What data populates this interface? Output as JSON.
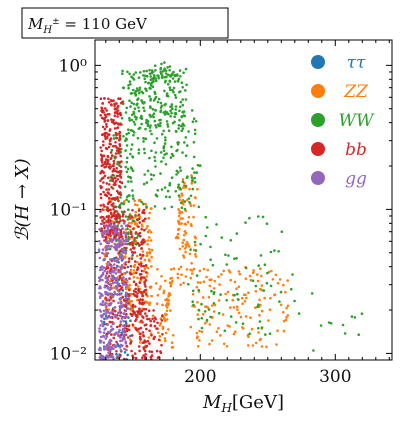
{
  "chart_data": {
    "type": "scatter",
    "title": "M_{H±} = 110 GeV",
    "title_parts": {
      "symbol": "M",
      "sub": "H",
      "sup": "±",
      "rest": " = 110 GeV"
    },
    "xlabel_main": "M",
    "xlabel_sub": "H",
    "xlabel_unit": "[GeV]",
    "ylabel": "ℬ(H → X)",
    "x_range": [
      122,
      342
    ],
    "y_range": [
      0.009,
      1.5
    ],
    "y_scale": "log",
    "x_ticks": [
      {
        "value": 200,
        "label": "200"
      },
      {
        "value": 300,
        "label": "300"
      }
    ],
    "y_ticks": [
      {
        "value": 0.01,
        "label": "10⁻²"
      },
      {
        "value": 0.1,
        "label": "10⁻¹"
      },
      {
        "value": 1,
        "label": "10⁰"
      }
    ],
    "legend_position": "top-right",
    "series": [
      {
        "name": "ττ",
        "color": "#1f77b4",
        "clusters": [
          {
            "x": [
              128,
              150
            ],
            "y": [
              0.009,
              0.05
            ],
            "n": 60
          }
        ]
      },
      {
        "name": "ZZ",
        "color": "#ff7f0e",
        "clusters": [
          {
            "x": [
              128,
              165
            ],
            "y": [
              0.02,
              0.12
            ],
            "n": 190
          },
          {
            "x": [
              143,
              180
            ],
            "y": [
              0.011,
              0.04
            ],
            "n": 90
          },
          {
            "x": [
              183,
              198
            ],
            "y": [
              0.03,
              0.18
            ],
            "n": 70
          },
          {
            "x": [
              192,
              265
            ],
            "y": [
              0.011,
              0.04
            ],
            "n": 150
          }
        ],
        "curve": [
          [
            170,
            0.014
          ],
          [
            175,
            0.02
          ],
          [
            180,
            0.04
          ],
          [
            185,
            0.09
          ],
          [
            190,
            0.17
          ]
        ]
      },
      {
        "name": "WW",
        "color": "#2ca02c",
        "clusters": [
          {
            "x": [
              142,
              190
            ],
            "y": [
              0.35,
              0.95
            ],
            "n": 200
          },
          {
            "x": [
              133,
              155
            ],
            "y": [
              0.05,
              0.4
            ],
            "n": 130
          },
          {
            "x": [
              155,
              200
            ],
            "y": [
              0.1,
              0.5
            ],
            "n": 130
          },
          {
            "x": [
              190,
              270
            ],
            "y": [
              0.013,
              0.09
            ],
            "n": 80
          },
          {
            "x": [
              270,
              325
            ],
            "y": [
              0.01,
              0.03
            ],
            "n": 12
          }
        ],
        "curve": [
          [
            150,
            0.5
          ],
          [
            160,
            0.75
          ],
          [
            168,
            0.9
          ],
          [
            175,
            0.92
          ],
          [
            185,
            0.7
          ]
        ]
      },
      {
        "name": "bb",
        "color": "#d62728",
        "clusters": [
          {
            "x": [
              126,
              142
            ],
            "y": [
              0.06,
              0.6
            ],
            "n": 330
          },
          {
            "x": [
              130,
              160
            ],
            "y": [
              0.009,
              0.1
            ],
            "n": 360
          },
          {
            "x": [
              150,
              172
            ],
            "y": [
              0.009,
              0.02
            ],
            "n": 60
          }
        ]
      },
      {
        "name": "gg",
        "color": "#9467bd",
        "clusters": [
          {
            "x": [
              125,
              146
            ],
            "y": [
              0.009,
              0.08
            ],
            "n": 380
          }
        ]
      }
    ]
  }
}
